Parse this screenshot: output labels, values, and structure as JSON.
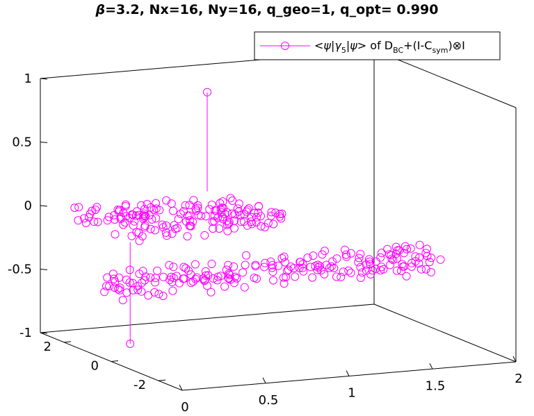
{
  "chart_data": {
    "type": "scatter",
    "title": {
      "beta_symbol": "β",
      "rest": "=3.2, Nx=16, Ny=16, q_geo=1, q_opt= 0.990"
    },
    "legend": {
      "placement": "top-right",
      "entry": {
        "prefix": "<",
        "psi1": "ψ",
        "bar1": "|",
        "gamma": "γ",
        "gamma_sub": "5",
        "bar2": "|",
        "psi2": "ψ",
        "mid": "> of D",
        "d_sub": "BC",
        "plus": "+(I-C",
        "c_sub": "sym",
        "tail": ")⊗I"
      }
    },
    "axes": {
      "x": {
        "range": [
          0,
          2
        ],
        "ticks": [
          "0",
          "0.5",
          "1",
          "1.5",
          "2"
        ],
        "tick_values": [
          0,
          0.5,
          1,
          1.5,
          2
        ]
      },
      "y": {
        "range": [
          -3,
          3
        ],
        "ticks": [
          "-2",
          "0",
          "2"
        ],
        "tick_values": [
          -2,
          0,
          2
        ]
      },
      "z": {
        "range": [
          -1,
          1
        ],
        "ticks": [
          "-1",
          "-0.5",
          "0",
          "0.5",
          "1"
        ],
        "tick_values": [
          -1,
          -0.5,
          0,
          0.5,
          1
        ]
      }
    },
    "grid": false,
    "marker": "open-circle",
    "color": "#ff00ff",
    "stems": [
      {
        "x": 1.0,
        "y": 3.0,
        "z": 0.78
      },
      {
        "x": 0.0,
        "y": -0.8,
        "z": -0.8
      }
    ],
    "bands": [
      {
        "description": "upper band",
        "z": -0.02,
        "x_range": [
          0.0,
          2.0
        ],
        "y_at_x0": 2.0
      },
      {
        "description": "lower band",
        "z": -0.43,
        "x_range": [
          0.0,
          2.0
        ],
        "y_at_x0": 0.0
      }
    ]
  }
}
